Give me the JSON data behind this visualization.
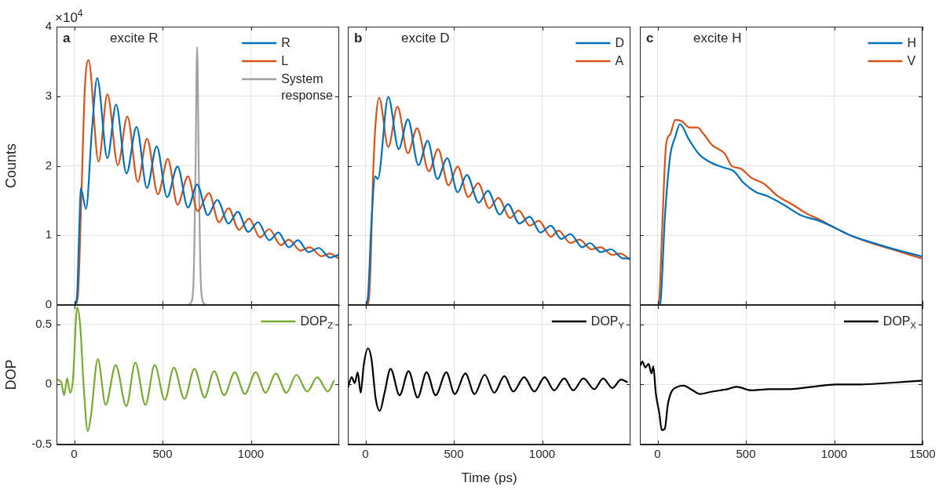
{
  "chart_data": [
    {
      "type": "line",
      "ylabel": "Counts",
      "annotations": [
        "a",
        "excite R",
        "×10$^{4}$"
      ],
      "xlim": [
        -100,
        1500
      ],
      "xticks": [
        0,
        500,
        1000
      ],
      "ylim": [
        0,
        4
      ],
      "yticks": [
        0,
        1,
        2,
        3,
        4
      ],
      "grid": true,
      "legend": "top right",
      "tick_labels": "y",
      "series": [
        {
          "name": "R",
          "color": "#0072bd",
          "x": [
            -100,
            0,
            15,
            30,
            37,
            67,
            100,
            130,
            188,
            237,
            296,
            353,
            412,
            467,
            526,
            585,
            644,
            696,
            756,
            810,
            874,
            926,
            985,
            1041,
            1104,
            1156,
            1215,
            1267,
            1326,
            1385,
            1447,
            1496
          ],
          "values": [
            0,
            0,
            0.1,
            1.2,
            1.68,
            1.38,
            2.5,
            3.26,
            2.11,
            2.88,
            1.89,
            2.56,
            1.68,
            2.28,
            1.55,
            1.99,
            1.4,
            1.73,
            1.29,
            1.51,
            1.17,
            1.34,
            1.05,
            1.19,
            0.93,
            1.04,
            0.83,
            0.93,
            0.76,
            0.82,
            0.68,
            0.72
          ]
        },
        {
          "name": "L",
          "color": "#d95319",
          "x": [
            -100,
            0,
            20,
            40,
            60,
            81,
            138,
            188,
            247,
            301,
            360,
            412,
            474,
            530,
            585,
            644,
            699,
            763,
            819,
            874,
            933,
            990,
            1052,
            1104,
            1170,
            1215,
            1281,
            1333,
            1400,
            1447,
            1496
          ],
          "values": [
            0,
            0,
            0.1,
            1.5,
            3.1,
            3.52,
            2.06,
            3.03,
            2.01,
            2.71,
            1.77,
            2.39,
            1.59,
            2.1,
            1.44,
            1.85,
            1.35,
            1.61,
            1.19,
            1.39,
            1.08,
            1.24,
            0.97,
            1.09,
            0.86,
            0.94,
            0.78,
            0.83,
            0.7,
            0.74,
            0.67
          ]
        },
        {
          "name": "System response",
          "color": "#a0a0a0",
          "x": [
            -100,
            640,
            660,
            675,
            686,
            696,
            706,
            717,
            732,
            752,
            1500
          ],
          "values": [
            0,
            0,
            0.03,
            0.3,
            1.8,
            3.71,
            1.8,
            0.3,
            0.03,
            0,
            0
          ]
        }
      ]
    },
    {
      "type": "line",
      "annotations": [
        "b",
        "excite D"
      ],
      "xlim": [
        -100,
        1500
      ],
      "xticks": [
        0,
        500,
        1000
      ],
      "ylim": [
        0,
        4
      ],
      "yticks": [
        0,
        1,
        2,
        3,
        4
      ],
      "grid": true,
      "legend": "top right",
      "tick_labels": false,
      "series": [
        {
          "name": "D",
          "color": "#0072bd",
          "x": [
            -100,
            0,
            15,
            33,
            55,
            70,
            129,
            188,
            240,
            300,
            352,
            407,
            463,
            522,
            574,
            641,
            693,
            760,
            807,
            871,
            930,
            990,
            1049,
            1108,
            1160,
            1227,
            1271,
            1331,
            1390,
            1457,
            1499
          ],
          "values": [
            0,
            0,
            0.15,
            1.15,
            1.85,
            1.81,
            2.99,
            2.24,
            2.67,
            2.01,
            2.36,
            1.81,
            2.11,
            1.62,
            1.87,
            1.47,
            1.64,
            1.3,
            1.45,
            1.17,
            1.27,
            1.04,
            1.14,
            0.95,
            1.02,
            0.83,
            0.89,
            0.76,
            0.8,
            0.67,
            0.67
          ]
        },
        {
          "name": "A",
          "color": "#d95319",
          "x": [
            -100,
            10,
            25,
            45,
            60,
            77,
            129,
            181,
            240,
            292,
            359,
            411,
            470,
            522,
            582,
            638,
            700,
            752,
            819,
            867,
            930,
            982,
            1049,
            1093,
            1160,
            1212,
            1279,
            1331,
            1398,
            1442,
            1499
          ],
          "values": [
            0,
            0,
            0.3,
            2,
            2.7,
            2.98,
            2.27,
            2.85,
            2.18,
            2.54,
            1.92,
            2.24,
            1.72,
            1.99,
            1.55,
            1.75,
            1.39,
            1.54,
            1.25,
            1.36,
            1.14,
            1.21,
            0.98,
            1.07,
            0.89,
            0.94,
            0.8,
            0.83,
            0.72,
            0.74,
            0.65
          ]
        }
      ]
    },
    {
      "type": "line",
      "annotations": [
        "c",
        "excite H"
      ],
      "xlim": [
        -100,
        1500
      ],
      "xticks": [
        0,
        500,
        1000,
        1500
      ],
      "ylim": [
        0,
        4
      ],
      "yticks": [
        0,
        1,
        2,
        3,
        4
      ],
      "grid": true,
      "legend": "top right",
      "tick_labels": false,
      "series": [
        {
          "name": "H",
          "color": "#0072bd",
          "x": [
            -100,
            10,
            19,
            41,
            71,
            101,
            127,
            175,
            234,
            293,
            367,
            433,
            485,
            559,
            618,
            707,
            811,
            914,
            1003,
            1092,
            1210,
            1328,
            1491
          ],
          "values": [
            0,
            0,
            0.1,
            1.23,
            2.13,
            2.42,
            2.6,
            2.39,
            2.17,
            2.06,
            1.98,
            1.92,
            1.76,
            1.62,
            1.57,
            1.45,
            1.29,
            1.21,
            1.11,
            1,
            0.9,
            0.81,
            0.7
          ]
        },
        {
          "name": "V",
          "color": "#d95319",
          "x": [
            -100,
            0,
            10,
            27,
            49,
            71,
            101,
            138,
            182,
            226,
            263,
            308,
            382,
            419,
            470,
            530,
            604,
            678,
            766,
            840,
            914,
            1003,
            1092,
            1210,
            1328,
            1491
          ],
          "values": [
            0,
            0,
            0.1,
            1.15,
            2.32,
            2.45,
            2.66,
            2.64,
            2.55,
            2.55,
            2.45,
            2.3,
            2.17,
            2,
            1.96,
            1.83,
            1.74,
            1.57,
            1.44,
            1.32,
            1.23,
            1.11,
            1,
            0.89,
            0.8,
            0.67
          ]
        }
      ]
    },
    {
      "type": "line",
      "ylabel": "DOP",
      "xlim": [
        -100,
        1500
      ],
      "xticks": [
        0,
        500,
        1000
      ],
      "ylim": [
        -0.5,
        0.66
      ],
      "yticks": [
        -0.5,
        0,
        0.5
      ],
      "grid": true,
      "legend": "top right",
      "series": [
        {
          "name": "DOP$_{Z}$",
          "color": "#77ac30",
          "x": [
            -97,
            -74,
            -57,
            -40,
            -23,
            -7,
            17,
            34,
            54,
            77,
            94,
            134,
            178,
            235,
            295,
            346,
            403,
            456,
            513,
            564,
            624,
            681,
            738,
            792,
            849,
            909,
            966,
            1027,
            1084,
            1141,
            1201,
            1258,
            1319,
            1376,
            1436,
            1470
          ],
          "values": [
            0.04,
            0.02,
            -0.09,
            0.05,
            -0.07,
            0.04,
            0.64,
            0.49,
            -0.02,
            -0.39,
            -0.27,
            0.21,
            -0.17,
            0.16,
            -0.18,
            0.18,
            -0.17,
            0.16,
            -0.13,
            0.14,
            -0.12,
            0.13,
            -0.11,
            0.11,
            -0.09,
            0.1,
            -0.08,
            0.1,
            -0.07,
            0.09,
            -0.07,
            0.08,
            -0.06,
            0.06,
            -0.06,
            0.03
          ]
        }
      ]
    },
    {
      "type": "line",
      "xlabel": "Time (ps)",
      "xlim": [
        -100,
        1500
      ],
      "xticks": [
        0,
        500,
        1000
      ],
      "ylim": [
        -0.5,
        0.66
      ],
      "yticks": [
        -0.5,
        0,
        0.5
      ],
      "grid": true,
      "legend": "top right",
      "tick_labels": "x",
      "series": [
        {
          "name": "DOP$_{Y}$",
          "color": "#000000",
          "x": [
            -100,
            -78,
            -61,
            -44,
            -27,
            -10,
            14,
            34,
            58,
            81,
            108,
            142,
            193,
            244,
            295,
            346,
            397,
            458,
            505,
            566,
            617,
            675,
            729,
            786,
            837,
            898,
            956,
            1014,
            1068,
            1125,
            1176,
            1234,
            1295,
            1346,
            1397,
            1447,
            1481
          ],
          "values": [
            -0.03,
            0.06,
            0.01,
            0.1,
            -0.07,
            0.16,
            0.3,
            0.21,
            -0.12,
            -0.22,
            -0.07,
            0.13,
            -0.09,
            0.11,
            -0.11,
            0.1,
            -0.09,
            0.1,
            -0.08,
            0.09,
            -0.08,
            0.08,
            -0.07,
            0.07,
            -0.06,
            0.06,
            -0.06,
            0.06,
            -0.05,
            0.05,
            -0.05,
            0.05,
            -0.04,
            0.05,
            -0.03,
            0.04,
            0.02
          ]
        }
      ]
    },
    {
      "type": "line",
      "xlim": [
        -100,
        1500
      ],
      "xticks": [
        0,
        500,
        1000,
        1500
      ],
      "ylim": [
        -0.5,
        0.66
      ],
      "yticks": [
        -0.5,
        0,
        0.5
      ],
      "grid": true,
      "legend": "top right",
      "tick_labels": "x",
      "series": [
        {
          "name": "DOP$_{X}$",
          "color": "#000000",
          "x": [
            -96,
            -86,
            -69,
            -51,
            -34,
            -24,
            -10,
            10,
            24,
            41,
            58,
            76,
            113,
            148,
            189,
            240,
            309,
            395,
            446,
            532,
            635,
            738,
            875,
            1013,
            1150,
            1287,
            1390,
            1493
          ],
          "values": [
            0.16,
            0.19,
            0.14,
            0.17,
            0.09,
            0.15,
            -0.07,
            -0.24,
            -0.38,
            -0.37,
            -0.17,
            -0.07,
            -0.02,
            -0.01,
            -0.04,
            -0.08,
            -0.06,
            -0.04,
            -0.02,
            -0.05,
            -0.04,
            -0.04,
            -0.02,
            0,
            0,
            0.01,
            0.02,
            0.03
          ]
        }
      ]
    }
  ]
}
